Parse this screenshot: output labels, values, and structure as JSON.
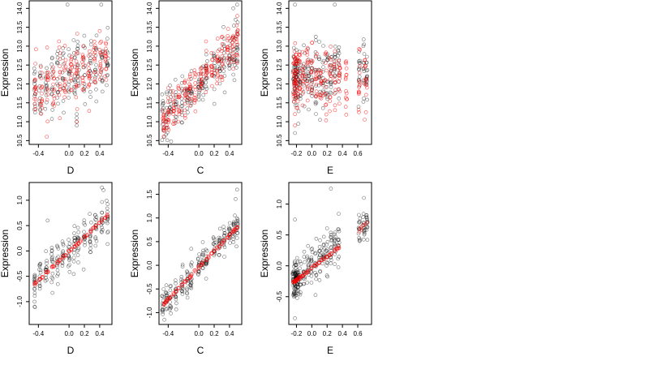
{
  "chart_data": [
    {
      "type": "scatter",
      "xlabel": "D",
      "ylabel": "Expression",
      "xlim": [
        -0.52,
        0.56
      ],
      "ylim": [
        10.4,
        14.2
      ],
      "xticks": [
        "-0.4",
        "0.0",
        "0.2",
        "0.4"
      ],
      "xtick_values": [
        -0.4,
        0.0,
        0.2,
        0.4
      ],
      "yticks": [
        "10.5",
        "11.0",
        "11.5",
        "12.0",
        "12.5",
        "13.0",
        "13.5",
        "14.0"
      ],
      "ytick_values": [
        10.5,
        11.0,
        11.5,
        12.0,
        12.5,
        13.0,
        13.5,
        14.0
      ],
      "grid": false,
      "series": [
        {
          "color": "#000000",
          "trend": [
            -0.45,
            11.9,
            0.5,
            12.6
          ],
          "spread": 0.75,
          "x_clusters": [
            -0.45,
            -0.38,
            -0.3,
            -0.22,
            -0.15,
            -0.08,
            0.0,
            0.07,
            0.12,
            0.2,
            0.28,
            0.35,
            0.43,
            0.5
          ],
          "points": [
            [
              0.1,
              11.1
            ],
            [
              0.1,
              10.9
            ],
            [
              0.1,
              11.2
            ],
            [
              0.1,
              11.0
            ],
            [
              -0.02,
              14.1
            ],
            [
              0.42,
              14.1
            ],
            [
              -0.45,
              12.0
            ],
            [
              0.5,
              13.2
            ]
          ]
        },
        {
          "color": "#ff0000",
          "trend": [
            -0.45,
            11.8,
            0.5,
            12.6
          ],
          "spread": 0.7,
          "x_clusters": [
            -0.44,
            -0.36,
            -0.28,
            -0.2,
            -0.12,
            -0.05,
            0.03,
            0.1,
            0.18,
            0.26,
            0.33,
            0.41,
            0.48
          ],
          "points": [
            [
              0.1,
              12.5
            ],
            [
              0.1,
              12.8
            ],
            [
              0.1,
              11.0
            ],
            [
              -0.45,
              11.6
            ],
            [
              0.4,
              13.4
            ]
          ]
        }
      ]
    },
    {
      "type": "scatter",
      "xlabel": "C",
      "ylabel": "Expression",
      "xlim": [
        -0.52,
        0.56
      ],
      "ylim": [
        10.4,
        14.2
      ],
      "xticks": [
        "-0.4",
        "0.0",
        "0.2",
        "0.4"
      ],
      "xtick_values": [
        -0.4,
        0.0,
        0.2,
        0.4
      ],
      "yticks": [
        "10.5",
        "11.0",
        "11.5",
        "12.0",
        "12.5",
        "13.0",
        "13.5",
        "14.0"
      ],
      "ytick_values": [
        10.5,
        11.0,
        11.5,
        12.0,
        12.5,
        13.0,
        13.5,
        14.0
      ],
      "grid": false,
      "series": [
        {
          "color": "#000000",
          "trend": [
            -0.45,
            11.1,
            0.5,
            12.9
          ],
          "spread": 0.55,
          "x_clusters": [
            -0.47,
            -0.42,
            -0.37,
            -0.3,
            -0.22,
            -0.15,
            -0.1,
            0.0,
            0.05,
            0.1,
            0.2,
            0.27,
            0.33,
            0.4,
            0.46,
            0.5
          ],
          "points": [
            [
              -0.45,
              10.6
            ],
            [
              0.45,
              14.0
            ],
            [
              0.5,
              14.1
            ],
            [
              0.48,
              13.7
            ]
          ]
        },
        {
          "color": "#ff0000",
          "trend": [
            -0.45,
            11.1,
            0.5,
            13.1
          ],
          "spread": 0.5,
          "x_clusters": [
            -0.46,
            -0.4,
            -0.33,
            -0.26,
            -0.18,
            -0.12,
            -0.05,
            0.03,
            0.1,
            0.17,
            0.24,
            0.3,
            0.38,
            0.44,
            0.5
          ],
          "points": [
            [
              -0.44,
              11.0
            ],
            [
              -0.42,
              10.9
            ],
            [
              0.48,
              12.6
            ],
            [
              0.48,
              13.2
            ]
          ]
        }
      ]
    },
    {
      "type": "scatter",
      "xlabel": "E",
      "ylabel": "Expression",
      "xlim": [
        -0.3,
        0.78
      ],
      "ylim": [
        10.4,
        14.2
      ],
      "xticks": [
        "-0.2",
        "0.0",
        "0.2",
        "0.4",
        "0.6"
      ],
      "xtick_values": [
        -0.2,
        0.0,
        0.2,
        0.4,
        0.6
      ],
      "yticks": [
        "10.5",
        "11.0",
        "11.5",
        "12.0",
        "12.5",
        "13.0",
        "13.5",
        "14.0"
      ],
      "ytick_values": [
        10.5,
        11.0,
        11.5,
        12.0,
        12.5,
        13.0,
        13.5,
        14.0
      ],
      "grid": false,
      "series": [
        {
          "color": "#000000",
          "trend": [
            -0.22,
            12.2,
            0.72,
            12.2
          ],
          "spread": 0.8,
          "x_clusters": [
            -0.24,
            -0.22,
            -0.21,
            -0.2,
            -0.18,
            -0.15,
            -0.1,
            -0.05,
            0.0,
            0.05,
            0.1,
            0.15,
            0.2,
            0.25,
            0.3,
            0.35,
            0.62,
            0.68,
            0.72
          ],
          "points": [
            [
              -0.22,
              10.7
            ],
            [
              -0.22,
              14.1
            ],
            [
              0.3,
              14.1
            ]
          ]
        },
        {
          "color": "#ff0000",
          "trend": [
            -0.22,
            12.2,
            0.72,
            12.0
          ],
          "spread": 0.75,
          "x_clusters": [
            -0.23,
            -0.22,
            -0.21,
            -0.19,
            -0.16,
            -0.12,
            -0.06,
            0.0,
            0.06,
            0.12,
            0.18,
            0.24,
            0.3,
            0.36,
            0.45,
            0.62,
            0.7
          ],
          "points": [
            [
              -0.22,
              10.9
            ],
            [
              -0.22,
              11.2
            ],
            [
              0.45,
              12.6
            ],
            [
              0.72,
              11.9
            ]
          ]
        }
      ]
    },
    {
      "type": "scatter",
      "xlabel": "D",
      "ylabel": "Expression",
      "xlim": [
        -0.52,
        0.56
      ],
      "ylim": [
        -1.45,
        1.35
      ],
      "xticks": [
        "-0.4",
        "0.0",
        "0.2",
        "0.4"
      ],
      "xtick_values": [
        -0.4,
        0.0,
        0.2,
        0.4
      ],
      "yticks": [
        "-1.0",
        "-0.5",
        "0.0",
        "0.5",
        "1.0"
      ],
      "ytick_values": [
        -1.0,
        -0.5,
        0.0,
        0.5,
        1.0
      ],
      "grid": false,
      "series": [
        {
          "color": "#000000",
          "trend": [
            -0.45,
            -0.65,
            0.5,
            0.7
          ],
          "spread": 0.35,
          "x_clusters": [
            -0.45,
            -0.38,
            -0.3,
            -0.22,
            -0.15,
            -0.08,
            0.0,
            0.07,
            0.12,
            0.2,
            0.28,
            0.35,
            0.43,
            0.5
          ],
          "points": [
            [
              -0.45,
              -1.1
            ],
            [
              -0.45,
              -1.0
            ],
            [
              0.43,
              1.25
            ],
            [
              0.45,
              1.2
            ],
            [
              -0.28,
              0.6
            ]
          ]
        },
        {
          "color": "#ff0000",
          "line": true,
          "trend": [
            -0.45,
            -0.65,
            0.5,
            0.7
          ],
          "x_clusters": [
            -0.45,
            -0.43,
            -0.38,
            -0.35,
            -0.3,
            -0.28,
            -0.22,
            -0.2,
            -0.15,
            -0.12,
            -0.08,
            -0.05,
            0.0,
            0.03,
            0.07,
            0.1,
            0.12,
            0.15,
            0.2,
            0.23,
            0.28,
            0.32,
            0.35,
            0.4,
            0.43,
            0.47,
            0.5
          ],
          "points": []
        }
      ]
    },
    {
      "type": "scatter",
      "xlabel": "C",
      "ylabel": "Expression",
      "xlim": [
        -0.52,
        0.56
      ],
      "ylim": [
        -1.25,
        1.75
      ],
      "xticks": [
        "-0.4",
        "0.0",
        "0.2",
        "0.4"
      ],
      "xtick_values": [
        -0.4,
        0.0,
        0.2,
        0.4
      ],
      "yticks": [
        "-1.0",
        "-0.5",
        "0.0",
        "0.5",
        "1.0",
        "1.5"
      ],
      "ytick_values": [
        -1.0,
        -0.5,
        0.0,
        0.5,
        1.0,
        1.5
      ],
      "grid": false,
      "series": [
        {
          "color": "#000000",
          "trend": [
            -0.45,
            -0.8,
            0.5,
            0.8
          ],
          "spread": 0.3,
          "x_clusters": [
            -0.47,
            -0.42,
            -0.37,
            -0.3,
            -0.22,
            -0.15,
            -0.1,
            0.0,
            0.05,
            0.1,
            0.2,
            0.27,
            0.33,
            0.4,
            0.46,
            0.5
          ],
          "points": [
            [
              -0.45,
              -1.15
            ],
            [
              0.5,
              1.6
            ],
            [
              0.48,
              1.4
            ],
            [
              -0.1,
              0.35
            ]
          ]
        },
        {
          "color": "#ff0000",
          "line": true,
          "trend": [
            -0.45,
            -0.8,
            0.5,
            0.8
          ],
          "x_clusters": [
            -0.46,
            -0.44,
            -0.42,
            -0.4,
            -0.37,
            -0.33,
            -0.3,
            -0.26,
            -0.22,
            -0.18,
            -0.15,
            -0.12,
            -0.1,
            -0.05,
            0.0,
            0.03,
            0.05,
            0.1,
            0.13,
            0.17,
            0.2,
            0.24,
            0.27,
            0.3,
            0.33,
            0.38,
            0.4,
            0.44,
            0.46,
            0.48,
            0.5
          ],
          "points": []
        }
      ]
    },
    {
      "type": "scatter",
      "xlabel": "E",
      "ylabel": "Expression",
      "xlim": [
        -0.3,
        0.78
      ],
      "ylim": [
        -0.95,
        1.35
      ],
      "xticks": [
        "-0.2",
        "0.0",
        "0.2",
        "0.4",
        "0.6"
      ],
      "xtick_values": [
        -0.2,
        0.0,
        0.2,
        0.4,
        0.6
      ],
      "yticks": [
        "-0.5",
        "0.0",
        "0.5",
        "1.0"
      ],
      "ytick_values": [
        -0.5,
        0.0,
        0.5,
        1.0
      ],
      "grid": false,
      "series": [
        {
          "color": "#000000",
          "trend": [
            -0.22,
            -0.25,
            0.72,
            0.7
          ],
          "spread": 0.3,
          "x_clusters": [
            -0.24,
            -0.23,
            -0.22,
            -0.21,
            -0.2,
            -0.19,
            -0.18,
            -0.15,
            -0.1,
            -0.05,
            0.0,
            0.05,
            0.1,
            0.15,
            0.2,
            0.25,
            0.3,
            0.35,
            0.62,
            0.68,
            0.72
          ],
          "points": [
            [
              -0.22,
              -0.85
            ],
            [
              -0.22,
              0.75
            ],
            [
              0.25,
              1.25
            ],
            [
              0.68,
              1.1
            ]
          ]
        },
        {
          "color": "#ff0000",
          "line": true,
          "trend": [
            -0.22,
            -0.25,
            0.35,
            0.3
          ],
          "x_clusters": [
            -0.24,
            -0.23,
            -0.22,
            -0.21,
            -0.2,
            -0.19,
            -0.18,
            -0.16,
            -0.14,
            -0.12,
            -0.1,
            -0.07,
            -0.04,
            0.0,
            0.03,
            0.06,
            0.1,
            0.13,
            0.16,
            0.2,
            0.23,
            0.26,
            0.3,
            0.33,
            0.35
          ],
          "points": [
            [
              0.62,
              0.55
            ],
            [
              0.63,
              0.6
            ],
            [
              0.64,
              0.62
            ],
            [
              0.66,
              0.65
            ],
            [
              0.68,
              0.66
            ],
            [
              0.7,
              0.68
            ],
            [
              0.72,
              0.7
            ],
            [
              0.65,
              0.58
            ]
          ]
        }
      ]
    }
  ]
}
